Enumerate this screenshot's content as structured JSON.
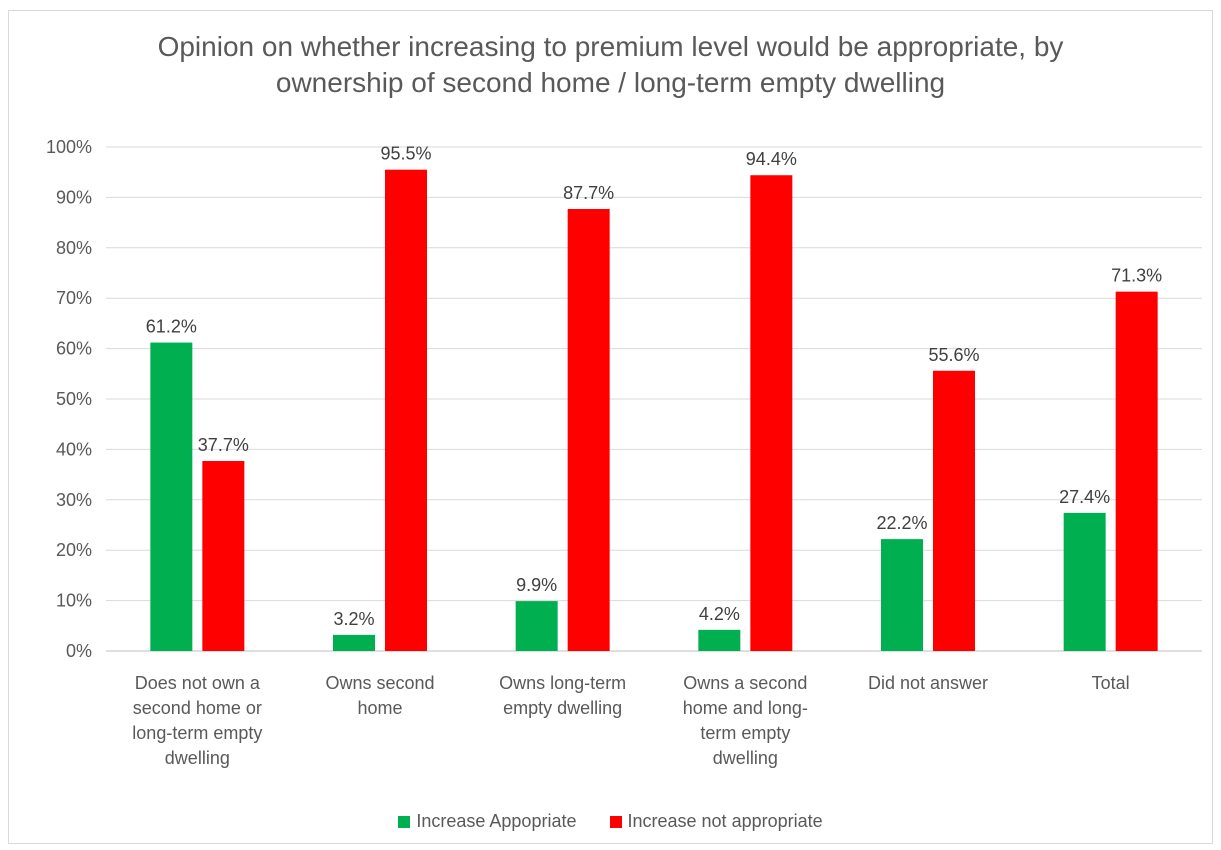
{
  "chart_data": {
    "type": "bar",
    "title": "Opinion on whether increasing to premium level would be appropriate, by ownership of second home / long-term empty dwelling",
    "title_lines": [
      "Opinion on whether increasing to premium level would be appropriate, by",
      "ownership of second home / long-term empty dwelling"
    ],
    "categories": [
      "Does not own a second home or long-term empty dwelling",
      "Owns second home",
      "Owns long-term empty dwelling",
      "Owns a second home and long-term empty dwelling",
      "Did not answer",
      "Total"
    ],
    "category_lines": [
      [
        "Does not own a",
        "second home or",
        "long-term empty",
        "dwelling"
      ],
      [
        "Owns second",
        "home"
      ],
      [
        "Owns long-term",
        "empty dwelling"
      ],
      [
        "Owns a second",
        "home and long-",
        "term empty",
        "dwelling"
      ],
      [
        "Did not answer"
      ],
      [
        "Total"
      ]
    ],
    "series": [
      {
        "name": "Increase Appopriate",
        "color": "#00b050",
        "values": [
          61.2,
          3.2,
          9.9,
          4.2,
          22.2,
          27.4
        ],
        "labels": [
          "61.2%",
          "3.2%",
          "9.9%",
          "4.2%",
          "22.2%",
          "27.4%"
        ]
      },
      {
        "name": "Increase not appropriate",
        "color": "#ff0000",
        "values": [
          37.7,
          95.5,
          87.7,
          94.4,
          55.6,
          71.3
        ],
        "labels": [
          "37.7%",
          "95.5%",
          "87.7%",
          "94.4%",
          "55.6%",
          "71.3%"
        ]
      }
    ],
    "yticks": [
      "0%",
      "10%",
      "20%",
      "30%",
      "40%",
      "50%",
      "60%",
      "70%",
      "80%",
      "90%",
      "100%"
    ],
    "ylim": [
      0,
      100
    ],
    "xlabel": "",
    "ylabel": "",
    "grid": true,
    "legend_position": "bottom"
  }
}
